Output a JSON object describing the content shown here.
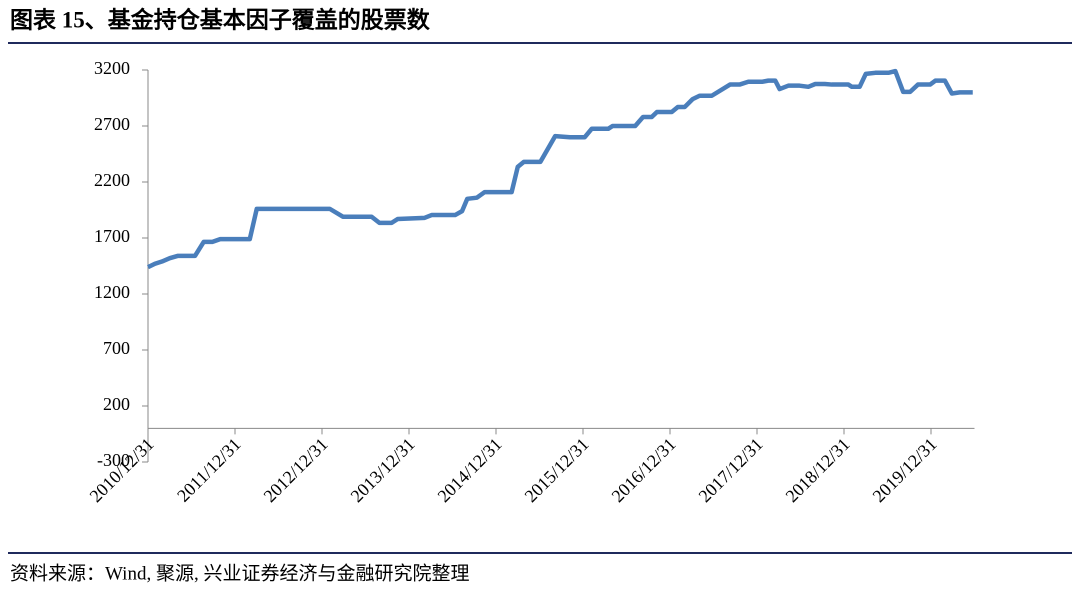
{
  "chart_data": {
    "type": "line",
    "title": "图表 15、基金持仓基本因子覆盖的股票数",
    "source": "资料来源：Wind, 聚源, 兴业证券经济与金融研究院整理",
    "color": "#4a7ebb",
    "x": [
      2011.0,
      2011.08,
      2011.16,
      2011.25,
      2011.34,
      2011.54,
      2011.64,
      2011.74,
      2011.83,
      2012.17,
      2012.25,
      2013.09,
      2013.24,
      2013.57,
      2013.66,
      2013.8,
      2013.87,
      2014.18,
      2014.26,
      2014.53,
      2014.61,
      2014.67,
      2014.78,
      2014.87,
      2015.18,
      2015.25,
      2015.32,
      2015.51,
      2015.68,
      2015.85,
      2016.02,
      2016.1,
      2016.29,
      2016.34,
      2016.6,
      2016.69,
      2016.79,
      2016.85,
      2017.02,
      2017.09,
      2017.17,
      2017.26,
      2017.34,
      2017.48,
      2017.69,
      2017.8,
      2017.9,
      2018.06,
      2018.13,
      2018.21,
      2018.26,
      2018.36,
      2018.49,
      2018.59,
      2018.67,
      2018.78,
      2018.86,
      2019.05,
      2019.09,
      2019.18,
      2019.25,
      2019.36,
      2019.51,
      2019.59,
      2019.68,
      2019.76,
      2019.85,
      2019.99,
      2020.05,
      2020.16,
      2020.24,
      2020.33,
      2020.48
    ],
    "values": [
      1440,
      1470,
      1490,
      1520,
      1540,
      1540,
      1665,
      1665,
      1690,
      1690,
      1960,
      1960,
      1890,
      1890,
      1835,
      1835,
      1870,
      1880,
      1905,
      1905,
      1940,
      2050,
      2060,
      2110,
      2110,
      2335,
      2380,
      2380,
      2610,
      2600,
      2600,
      2675,
      2675,
      2700,
      2700,
      2780,
      2780,
      2825,
      2825,
      2870,
      2870,
      2940,
      2970,
      2970,
      3070,
      3070,
      3095,
      3095,
      3105,
      3105,
      3030,
      3060,
      3060,
      3050,
      3075,
      3075,
      3070,
      3070,
      3050,
      3050,
      3165,
      3175,
      3175,
      3190,
      3005,
      3005,
      3070,
      3070,
      3105,
      3105,
      2990,
      3000,
      3000
    ],
    "xlim": [
      2011,
      2020.5
    ],
    "xticks": [
      {
        "value": 2011,
        "label": "2010/12/31"
      },
      {
        "value": 2012,
        "label": "2011/12/31"
      },
      {
        "value": 2013,
        "label": "2012/12/31"
      },
      {
        "value": 2014,
        "label": "2013/12/31"
      },
      {
        "value": 2015,
        "label": "2014/12/31"
      },
      {
        "value": 2016,
        "label": "2015/12/31"
      },
      {
        "value": 2017,
        "label": "2016/12/31"
      },
      {
        "value": 2018,
        "label": "2017/12/31"
      },
      {
        "value": 2019,
        "label": "2018/12/31"
      },
      {
        "value": 2020,
        "label": "2019/12/31"
      }
    ],
    "ylim": [
      -300,
      3200
    ],
    "yticks": [
      -300,
      200,
      700,
      1200,
      1700,
      2200,
      2700,
      3200
    ]
  }
}
